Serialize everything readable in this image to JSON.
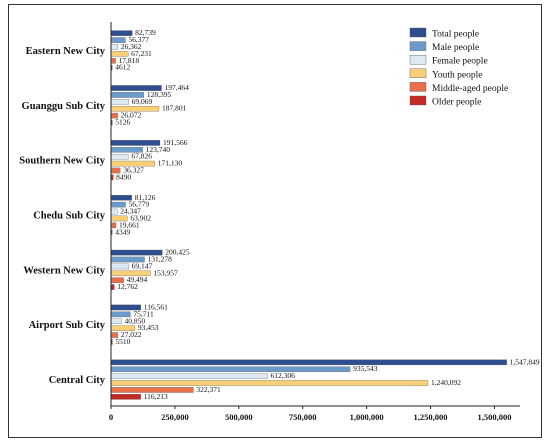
{
  "chart_data": {
    "type": "bar",
    "orientation": "horizontal",
    "categories": [
      "Eastern New City",
      "Guanggu Sub City",
      "Southern New City",
      "Chedu Sub City",
      "Western New City",
      "Airport Sub City",
      "Central City"
    ],
    "series": [
      {
        "name": "Total people",
        "color": "#2E4E8F",
        "values": [
          82739,
          197464,
          191566,
          81126,
          200425,
          116561,
          1547849
        ]
      },
      {
        "name": "Male people",
        "color": "#6C9ACB",
        "values": [
          56377,
          128395,
          123740,
          56779,
          131278,
          75711,
          935543
        ]
      },
      {
        "name": "Female people",
        "color": "#DCEAF4",
        "values": [
          26362,
          69069,
          67826,
          24347,
          69147,
          40850,
          612306
        ]
      },
      {
        "name": "Youth people",
        "color": "#F9CF78",
        "values": [
          67231,
          187801,
          171130,
          63902,
          153957,
          93453,
          1240092
        ]
      },
      {
        "name": "Middle-aged people",
        "color": "#E8704B",
        "values": [
          17818,
          26072,
          36327,
          19661,
          49494,
          27022,
          322371
        ]
      },
      {
        "name": "Older people",
        "color": "#C62A26",
        "values": [
          4612,
          5126,
          8490,
          4349,
          12762,
          5510,
          116213
        ]
      }
    ],
    "value_labels": [
      [
        "82,739",
        "56,377",
        "26,362",
        "67,231",
        "17,818",
        "4612"
      ],
      [
        "197,464",
        "128,395",
        "69,069",
        "187,801",
        "26,072",
        "5126"
      ],
      [
        "191,566",
        "123,740",
        "67,826",
        "171,130",
        "36,327",
        "8490"
      ],
      [
        "81,126",
        "56,779",
        "24,347",
        "63,902",
        "19,661",
        "4349"
      ],
      [
        "200,425",
        "131,278",
        "69,147",
        "153,957",
        "49,494",
        "12,762"
      ],
      [
        "116,561",
        "75,711",
        "40,850",
        "93,453",
        "27,022",
        "5510"
      ],
      [
        "1,547,849",
        "935,543",
        "612,306",
        "1,240,092",
        "322,371",
        "116,213"
      ]
    ],
    "xlim": [
      0,
      1600000
    ],
    "xticks": [
      0,
      250000,
      500000,
      750000,
      1000000,
      1250000,
      1500000
    ],
    "xtick_labels": [
      "0",
      "250,000",
      "500,000",
      "750,000",
      "1,000,000",
      "1,250,000",
      "1,500,000"
    ],
    "title": "",
    "xlabel": "",
    "ylabel": "",
    "grid": false,
    "legend_position": "top-right"
  }
}
